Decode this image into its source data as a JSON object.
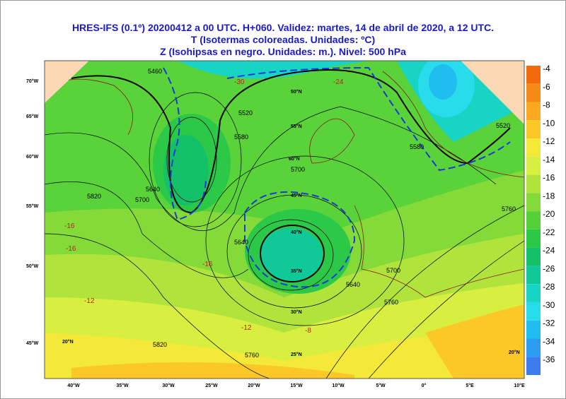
{
  "header": {
    "lines": [
      "HRES-IFS (0.1º) 20200412 a 00 UTC.  H+060. Validez: martes, 14 de abril de 2020,  a  12 UTC.",
      "T (Isotermas coloreadas. Unidades: ºC)",
      "Z (Isohipsas en negro. Unidades: m.).   Nivel: 500 hPa"
    ]
  },
  "colorbar": {
    "levels": [
      -4,
      -6,
      -8,
      -10,
      -12,
      -14,
      -16,
      -18,
      -20,
      -22,
      -24,
      -26,
      -28,
      -30,
      -32,
      -34,
      -36
    ],
    "colors": [
      "#f26a0c",
      "#f58a18",
      "#f9a820",
      "#fcc828",
      "#f4e838",
      "#d8ee40",
      "#b0e43c",
      "#84da38",
      "#54d038",
      "#2cc848",
      "#14c068",
      "#10c898",
      "#18d4c4",
      "#28dcec",
      "#20bef0",
      "#2c9cf0",
      "#3c7cee"
    ]
  },
  "axes": {
    "left": [
      "70°W",
      "65°W",
      "60°W",
      "55°W",
      "50°W",
      "45°W"
    ],
    "bottom": [
      "40°W",
      "35°W",
      "30°W",
      "25°W",
      "20°W",
      "15°W",
      "10°W",
      "5°W",
      "0°",
      "5°E",
      "10°E"
    ]
  },
  "map": {
    "contour_labels": [
      "5460",
      "5520",
      "5580",
      "5640",
      "5700",
      "5760",
      "5820",
      "5700",
      "5640",
      "5580",
      "5520",
      "5700",
      "5760",
      "5820",
      "5640",
      "5760"
    ],
    "latitude_labels": [
      "60°N",
      "55°N",
      "50°N",
      "45°N",
      "40°N",
      "35°N",
      "30°N",
      "25°N",
      "20°N",
      "20°N"
    ],
    "temperature_labels": [
      "-16",
      "-16",
      "-12",
      "-16",
      "-12",
      "-8",
      "-30",
      "-24"
    ]
  }
}
